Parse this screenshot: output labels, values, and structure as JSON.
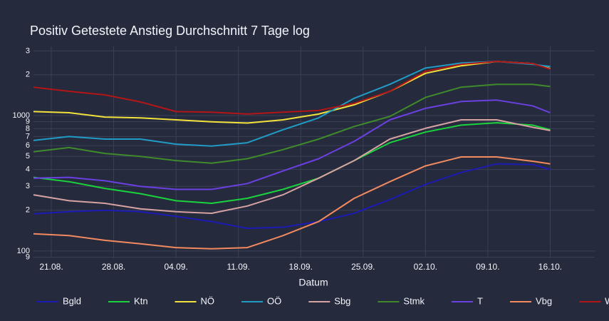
{
  "chart_data": {
    "type": "line",
    "title": "Positiv Getestete Anstieg Durchschnitt 7 Tage log",
    "x_label": "Datum",
    "log_y": true,
    "grid": true,
    "legend": "bottom",
    "x": [
      "19.08.",
      "23.08.",
      "27.08.",
      "31.08.",
      "04.09.",
      "08.09.",
      "12.09.",
      "16.09.",
      "20.09.",
      "24.09.",
      "28.09.",
      "02.10.",
      "06.10.",
      "10.10.",
      "14.10.",
      "16.10."
    ],
    "xlim": [
      "19.08.",
      "21.10."
    ],
    "xticks": [
      "21.08.",
      "28.08.",
      "04.09.",
      "11.09.",
      "18.09.",
      "25.09.",
      "02.10.",
      "09.10.",
      "16.10."
    ],
    "ylim": [
      88.5,
      3240
    ],
    "yticks": [
      {
        "value": 90,
        "label": "9"
      },
      100,
      {
        "value": 200,
        "label": "2"
      },
      {
        "value": 300,
        "label": "3"
      },
      {
        "value": 400,
        "label": "4"
      },
      {
        "value": 500,
        "label": "5"
      },
      {
        "value": 600,
        "label": "6"
      },
      {
        "value": 700,
        "label": "7"
      },
      {
        "value": 800,
        "label": "8"
      },
      {
        "value": 900,
        "label": "9"
      },
      1000,
      {
        "value": 2000,
        "label": "2"
      },
      {
        "value": 3000,
        "label": "3"
      }
    ],
    "series": [
      {
        "name": "Bgld",
        "color": "#1c1cb4",
        "values": [
          188,
          195,
          200,
          195,
          180,
          165,
          147,
          150,
          165,
          190,
          240,
          310,
          380,
          440,
          435,
          400
        ]
      },
      {
        "name": "Ktn",
        "color": "#1ad33c",
        "values": [
          350,
          325,
          290,
          265,
          235,
          225,
          245,
          285,
          345,
          465,
          630,
          755,
          850,
          885,
          850,
          785
        ]
      },
      {
        "name": "NÖ",
        "color": "#f2e23b",
        "values": [
          1070,
          1050,
          975,
          960,
          930,
          900,
          880,
          930,
          1025,
          1200,
          1510,
          2050,
          2330,
          2510,
          2420,
          2220
        ]
      },
      {
        "name": "OÖ",
        "color": "#209cc6",
        "values": [
          655,
          700,
          670,
          670,
          615,
          595,
          630,
          785,
          960,
          1340,
          1700,
          2240,
          2440,
          2510,
          2390,
          2300
        ]
      },
      {
        "name": "Sbg",
        "color": "#d6a2a2",
        "values": [
          260,
          235,
          225,
          205,
          195,
          190,
          215,
          260,
          345,
          465,
          670,
          805,
          930,
          930,
          820,
          775
        ]
      },
      {
        "name": "Stmk",
        "color": "#3f8b2b",
        "values": [
          540,
          580,
          525,
          500,
          465,
          445,
          480,
          560,
          670,
          830,
          985,
          1360,
          1620,
          1700,
          1700,
          1640
        ]
      },
      {
        "name": "T",
        "color": "#6b40e2",
        "values": [
          345,
          350,
          330,
          300,
          285,
          285,
          315,
          390,
          480,
          645,
          930,
          1130,
          1270,
          1300,
          1180,
          1050
        ]
      },
      {
        "name": "Vbg",
        "color": "#f28a60",
        "values": [
          134,
          130,
          120,
          113,
          106,
          104,
          106,
          130,
          165,
          245,
          325,
          425,
          495,
          495,
          460,
          440
        ]
      },
      {
        "name": "W",
        "color": "#b21616",
        "values": [
          1620,
          1510,
          1420,
          1260,
          1070,
          1060,
          1025,
          1060,
          1090,
          1230,
          1510,
          2120,
          2390,
          2510,
          2420,
          2200
        ]
      }
    ]
  }
}
